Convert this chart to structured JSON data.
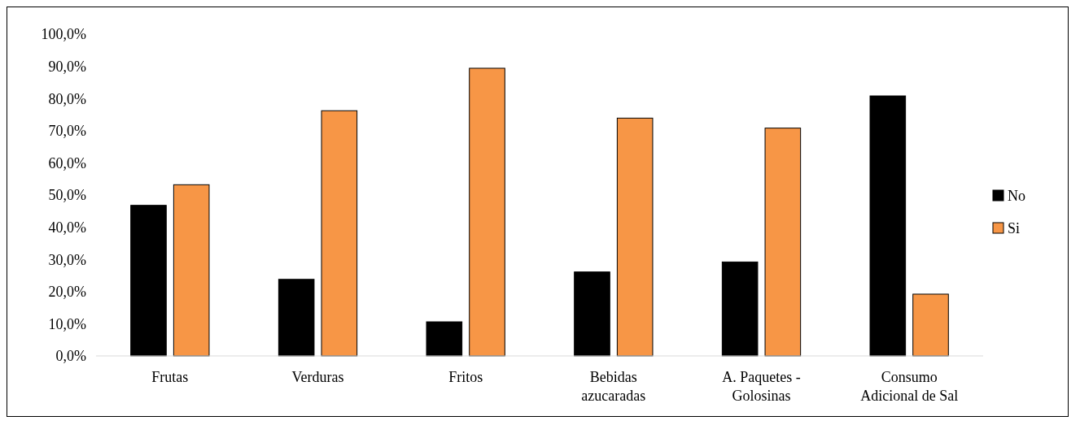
{
  "chart_data": {
    "type": "bar",
    "categories": [
      "Frutas",
      "Verduras",
      "Fritos",
      "Bebidas azucaradas",
      "A. Paquetes - Golosinas",
      "Consumo Adicional de Sal"
    ],
    "series": [
      {
        "name": "No",
        "color": "#000000",
        "values": [
          46.8,
          23.8,
          10.6,
          26.1,
          29.2,
          80.8
        ]
      },
      {
        "name": "Si",
        "color": "#f79646",
        "values": [
          53.2,
          76.2,
          89.4,
          73.9,
          70.8,
          19.2
        ]
      }
    ],
    "ylim": [
      0,
      100
    ],
    "yticks": [
      {
        "value": 0,
        "label": "0,0%"
      },
      {
        "value": 10,
        "label": "10,0%"
      },
      {
        "value": 20,
        "label": "20,0%"
      },
      {
        "value": 30,
        "label": "30,0%"
      },
      {
        "value": 40,
        "label": "40,0%"
      },
      {
        "value": 50,
        "label": "50,0%"
      },
      {
        "value": 60,
        "label": "60,0%"
      },
      {
        "value": 70,
        "label": "70,0%"
      },
      {
        "value": 80,
        "label": "80,0%"
      },
      {
        "value": 90,
        "label": "90,0%"
      },
      {
        "value": 100,
        "label": "100,0%"
      }
    ],
    "grid": false,
    "legend": "right"
  }
}
